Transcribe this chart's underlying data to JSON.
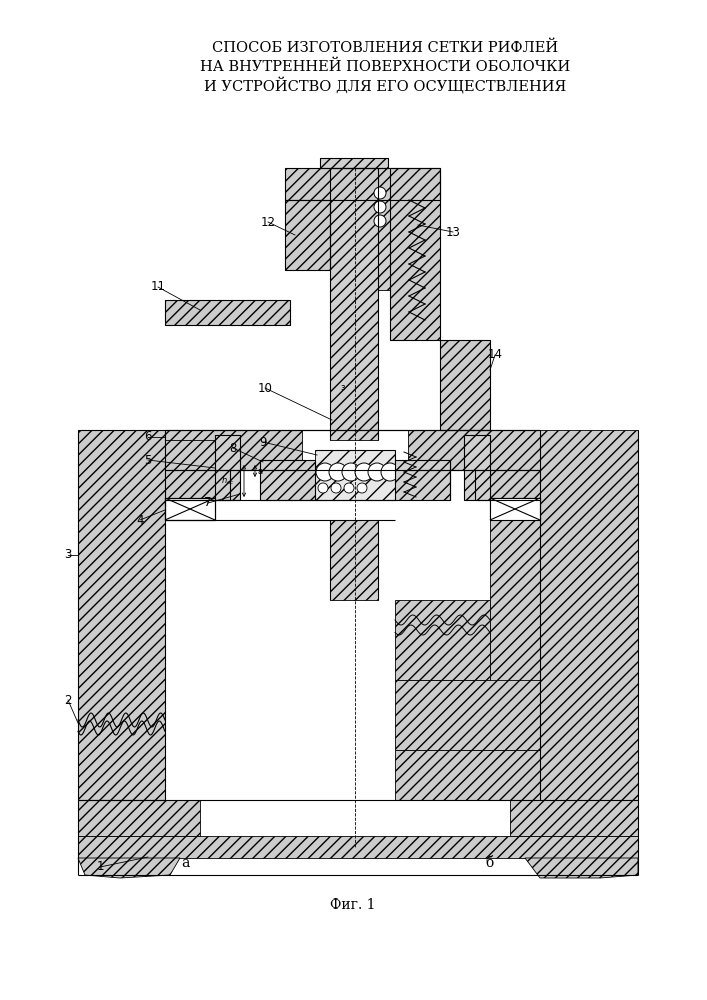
{
  "title_line1": "СПОСОБ ИЗГОТОВЛЕНИЯ СЕТКИ РИФЛЕЙ",
  "title_line2": "НА ВНУТРЕННЕЙ ПОВЕРХНОСТИ ОБОЛОЧКИ",
  "title_line3": "И УСТРОЙСТВО ДЛЯ ЕГО ОСУЩЕСТВЛЕНИЯ",
  "fig_label": "Фиг. 1",
  "label_a": "а",
  "label_b": "б",
  "bg_color": "#ffffff",
  "lc": "#000000",
  "hc": "#cccccc",
  "title_fontsize": 10.5,
  "note_fontsize": 8.5,
  "fig_fontsize": 10
}
